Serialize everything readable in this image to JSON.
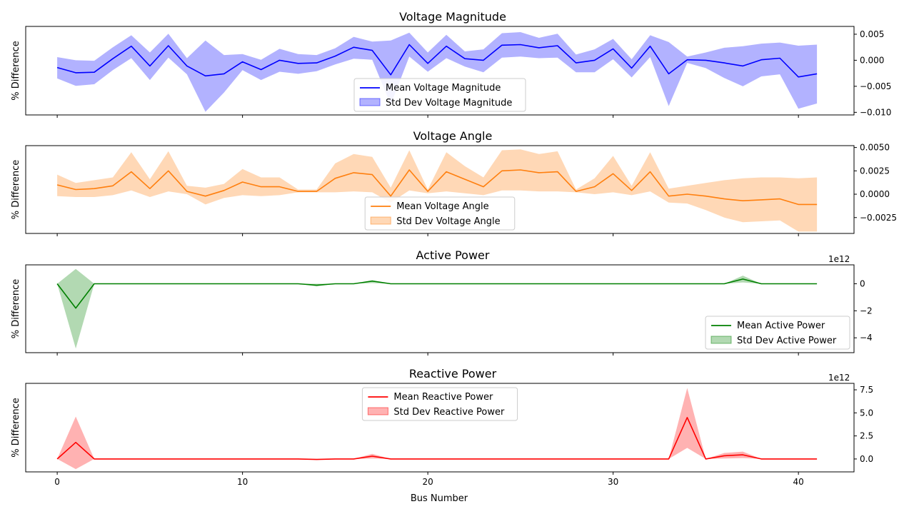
{
  "chart_data": {
    "type": "line",
    "xlabel": "Bus Number",
    "x_ticks": [
      "0",
      "10",
      "20",
      "30",
      "40"
    ],
    "xlim": [
      -1.7,
      43
    ],
    "panels": [
      {
        "title": "Voltage Magnitude",
        "ylabel": "% Difference",
        "color": "#0000ff",
        "ylim": [
          -0.0105,
          0.0065
        ],
        "yticks": [
          0.005,
          0.0,
          -0.005,
          -0.01
        ],
        "ytick_labels": [
          "0.005",
          "0.000",
          "−0.005",
          "−0.010"
        ],
        "offset_text": "",
        "legend_loc": "lower-center",
        "series": [
          {
            "name": "Mean Voltage Magnitude",
            "kind": "line",
            "values": [
              -0.0014,
              -0.0024,
              -0.0023,
              0.0003,
              0.0027,
              -0.0011,
              0.0028,
              -0.0011,
              -0.003,
              -0.0026,
              -0.0003,
              -0.0018,
              0.0,
              -0.0006,
              -0.0005,
              0.0008,
              0.0025,
              0.0019,
              -0.0028,
              0.003,
              -0.0006,
              0.0027,
              0.0003,
              0.0,
              0.0029,
              0.003,
              0.0024,
              0.0028,
              -0.0005,
              0.0,
              0.0022,
              -0.0015,
              0.0027,
              -0.0026,
              0.0001,
              0.0,
              -0.0005,
              -0.0011,
              0.0001,
              0.0004,
              -0.0032,
              -0.0026
            ]
          },
          {
            "name": "Std Dev Voltage Magnitude",
            "kind": "band",
            "upper": [
              0.0006,
              0.0,
              -0.0001,
              0.0025,
              0.0048,
              0.0015,
              0.0051,
              0.0004,
              0.0038,
              0.001,
              0.0012,
              0.0001,
              0.0022,
              0.0012,
              0.001,
              0.0023,
              0.0045,
              0.0036,
              0.0038,
              0.0053,
              0.0015,
              0.0049,
              0.0017,
              0.0021,
              0.0052,
              0.0054,
              0.0043,
              0.0051,
              0.0011,
              0.0021,
              0.0041,
              0.0002,
              0.0048,
              0.0035,
              0.0007,
              0.0015,
              0.0024,
              0.0027,
              0.0032,
              0.0034,
              0.0028,
              0.003
            ],
            "lower": [
              -0.0035,
              -0.0049,
              -0.0046,
              -0.0019,
              0.0004,
              -0.0038,
              0.0005,
              -0.0027,
              -0.0099,
              -0.0062,
              -0.0019,
              -0.0038,
              -0.0022,
              -0.0026,
              -0.0021,
              -0.0008,
              0.0003,
              0.0001,
              -0.0085,
              0.0007,
              -0.0022,
              0.0004,
              -0.0012,
              -0.0023,
              0.0005,
              0.0007,
              0.0004,
              0.0005,
              -0.0023,
              -0.0023,
              0.0002,
              -0.0033,
              0.0006,
              -0.0088,
              -0.0005,
              -0.0015,
              -0.0034,
              -0.005,
              -0.0031,
              -0.0027,
              -0.0093,
              -0.0083
            ]
          }
        ]
      },
      {
        "title": "Voltage Angle",
        "ylabel": "% Difference",
        "color": "#ff7f0e",
        "ylim": [
          -0.0042,
          0.0052
        ],
        "yticks": [
          0.005,
          0.0025,
          0.0,
          -0.0025
        ],
        "ytick_labels": [
          "0.0050",
          "0.0025",
          "0.0000",
          "−0.0025"
        ],
        "offset_text": "",
        "legend_loc": "lower-center",
        "series": [
          {
            "name": "Mean Voltage Angle",
            "kind": "line",
            "values": [
              0.001,
              0.0005,
              0.0006,
              0.0009,
              0.0024,
              0.0006,
              0.0025,
              0.0003,
              -0.0002,
              0.0004,
              0.0013,
              0.0008,
              0.0008,
              0.0003,
              0.0003,
              0.0017,
              0.0023,
              0.0021,
              -0.0002,
              0.0026,
              0.0003,
              0.0024,
              0.0016,
              0.0008,
              0.0025,
              0.0026,
              0.0023,
              0.0024,
              0.0003,
              0.0008,
              0.0022,
              0.0004,
              0.0024,
              -0.0002,
              0.0,
              -0.0002,
              -0.0005,
              -0.0007,
              -0.0006,
              -0.0005,
              -0.0011,
              -0.0011
            ]
          },
          {
            "name": "Std Dev Voltage Angle",
            "kind": "band",
            "upper": [
              0.0021,
              0.0012,
              0.0015,
              0.0018,
              0.0045,
              0.0016,
              0.0046,
              0.0009,
              0.0007,
              0.0011,
              0.0027,
              0.0018,
              0.0018,
              0.0005,
              0.0005,
              0.0033,
              0.0043,
              0.004,
              0.0007,
              0.0047,
              0.0005,
              0.0045,
              0.003,
              0.0018,
              0.0047,
              0.0048,
              0.0043,
              0.0046,
              0.0005,
              0.0017,
              0.0041,
              0.0009,
              0.0045,
              0.0006,
              0.0009,
              0.0012,
              0.0015,
              0.0017,
              0.0018,
              0.0018,
              0.0017,
              0.0018
            ],
            "lower": [
              -0.0002,
              -0.0003,
              -0.0003,
              -0.0001,
              0.0004,
              -0.0003,
              0.0003,
              0.0,
              -0.0011,
              -0.0004,
              -0.0001,
              -0.0002,
              -0.0001,
              0.0002,
              0.0002,
              0.0002,
              0.0003,
              0.0002,
              -0.0009,
              0.0004,
              0.0001,
              0.0003,
              0.0001,
              -0.0001,
              0.0004,
              0.0004,
              0.0003,
              0.0003,
              0.0002,
              0.0,
              0.0002,
              -0.0001,
              0.0003,
              -0.0009,
              -0.001,
              -0.0017,
              -0.0025,
              -0.003,
              -0.0029,
              -0.0028,
              -0.004,
              -0.004
            ]
          }
        ]
      },
      {
        "title": "Active Power",
        "ylabel": "% Difference",
        "color": "#008000",
        "ylim": [
          -5.1,
          1.4
        ],
        "yticks": [
          0,
          -2,
          -4
        ],
        "ytick_labels": [
          "0",
          "−2",
          "−4"
        ],
        "offset_text": "1e12",
        "legend_loc": "lower-right",
        "series": [
          {
            "name": "Mean Active Power",
            "kind": "line",
            "values": [
              0,
              -1.8,
              0,
              0,
              0,
              0,
              0,
              0,
              0,
              0,
              0,
              0,
              0,
              0,
              -0.1,
              0,
              0,
              0.2,
              0,
              0,
              0,
              0,
              0,
              0,
              0,
              0,
              0,
              0,
              0,
              0,
              0,
              0,
              0,
              0,
              0,
              0,
              0,
              0.35,
              0,
              0,
              0,
              0
            ]
          },
          {
            "name": "Std Dev Active Power",
            "kind": "band",
            "upper": [
              0,
              1.1,
              0,
              0,
              0,
              0,
              0,
              0,
              0,
              0,
              0,
              0,
              0,
              0,
              0,
              0,
              0,
              0.25,
              0,
              0,
              0,
              0,
              0,
              0,
              0,
              0,
              0,
              0,
              0,
              0,
              0,
              0,
              0,
              0,
              0,
              0,
              0,
              0.6,
              0,
              0,
              0,
              0
            ],
            "lower": [
              0,
              -4.8,
              0,
              0,
              0,
              0,
              0,
              0,
              0,
              0,
              0,
              0,
              0,
              0,
              -0.2,
              0,
              0,
              0.05,
              0,
              0,
              0,
              0,
              0,
              0,
              0,
              0,
              0,
              0,
              0,
              0,
              0,
              0,
              0,
              0,
              0,
              0,
              0,
              0.1,
              0,
              0,
              0,
              0
            ]
          }
        ]
      },
      {
        "title": "Reactive Power",
        "ylabel": "% Difference",
        "color": "#ff0000",
        "ylim": [
          -1.4,
          8.2
        ],
        "yticks": [
          7.5,
          5.0,
          2.5,
          0.0
        ],
        "ytick_labels": [
          "7.5",
          "5.0",
          "2.5",
          "0.0"
        ],
        "offset_text": "1e12",
        "legend_loc": "upper-center",
        "series": [
          {
            "name": "Mean Reactive Power",
            "kind": "line",
            "values": [
              0,
              1.8,
              0,
              0,
              0,
              0,
              0,
              0,
              0,
              0,
              0,
              0,
              0,
              0,
              -0.05,
              0,
              0,
              0.3,
              0,
              0,
              0,
              0,
              0,
              0,
              0,
              0,
              0,
              0,
              0,
              0,
              0,
              0,
              0,
              0,
              4.5,
              0,
              0.35,
              0.45,
              0,
              0,
              0,
              0
            ]
          },
          {
            "name": "Std Dev Reactive Power",
            "kind": "band",
            "upper": [
              0,
              4.6,
              0,
              0,
              0,
              0,
              0,
              0,
              0,
              0,
              0,
              0,
              0,
              0,
              0,
              0,
              0,
              0.55,
              0,
              0,
              0,
              0,
              0,
              0,
              0,
              0,
              0,
              0,
              0,
              0,
              0,
              0,
              0,
              0,
              7.7,
              0,
              0.65,
              0.8,
              0,
              0,
              0,
              0
            ],
            "lower": [
              0,
              -1.1,
              0,
              0,
              0,
              0,
              0,
              0,
              0,
              0,
              0,
              0,
              0,
              0,
              -0.1,
              0,
              0,
              0.05,
              0,
              0,
              0,
              0,
              0,
              0,
              0,
              0,
              0,
              0,
              0,
              0,
              0,
              0,
              0,
              0,
              1.2,
              0,
              0.05,
              0.1,
              0,
              0,
              0,
              0
            ]
          }
        ]
      }
    ]
  }
}
